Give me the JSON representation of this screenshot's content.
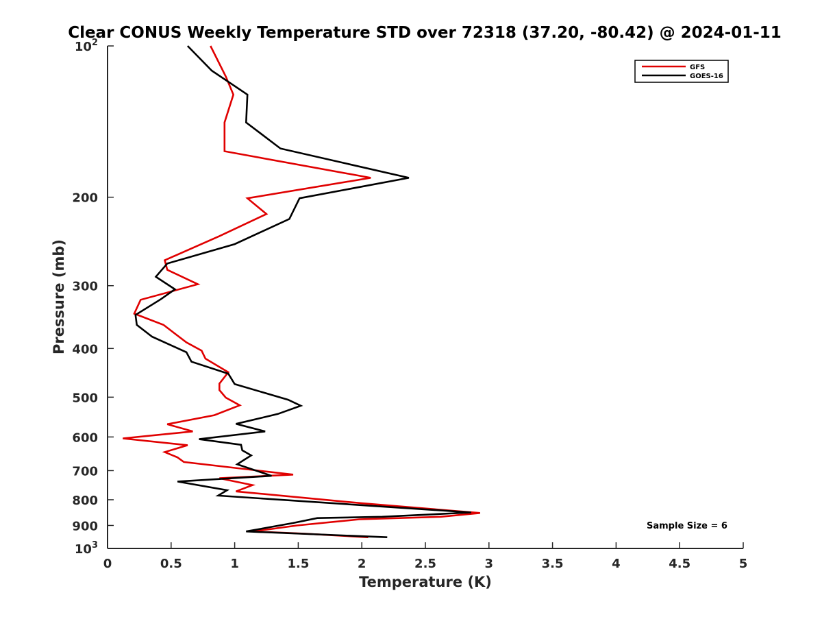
{
  "chart_data": {
    "type": "line",
    "title": "Clear CONUS Weekly Temperature STD over 72318 (37.20, -80.42) @ 2024-01-11",
    "xlabel": "Temperature (K)",
    "ylabel": "Pressure (mb)",
    "xlim": [
      0,
      5
    ],
    "ylim": [
      100,
      1000
    ],
    "y_scale": "log",
    "y_reversed": true,
    "x_ticks": [
      "0",
      "0.5",
      "1",
      "1.5",
      "2",
      "2.5",
      "3",
      "3.5",
      "4",
      "4.5",
      "5"
    ],
    "y_ticks": [
      {
        "value": 100,
        "base": "10",
        "exp": "2"
      },
      {
        "value": 200,
        "label": "200"
      },
      {
        "value": 300,
        "label": "300"
      },
      {
        "value": 400,
        "label": "400"
      },
      {
        "value": 500,
        "label": "500"
      },
      {
        "value": 600,
        "label": "600"
      },
      {
        "value": 700,
        "label": "700"
      },
      {
        "value": 800,
        "label": "800"
      },
      {
        "value": 900,
        "label": "900"
      },
      {
        "value": 1000,
        "base": "10",
        "exp": "3"
      }
    ],
    "grid": false,
    "legend_position": "top-right",
    "annotation": "Sample Size = 6",
    "series": [
      {
        "name": "GFS",
        "color": "#e00000",
        "points": [
          [
            0.81,
            100
          ],
          [
            0.93,
            115
          ],
          [
            0.99,
            125
          ],
          [
            0.92,
            142
          ],
          [
            0.92,
            162
          ],
          [
            2.07,
            183
          ],
          [
            1.1,
            201
          ],
          [
            1.25,
            216
          ],
          [
            0.88,
            239
          ],
          [
            0.45,
            267
          ],
          [
            0.47,
            279
          ],
          [
            0.71,
            298
          ],
          [
            0.26,
            320
          ],
          [
            0.21,
            341
          ],
          [
            0.44,
            359
          ],
          [
            0.62,
            389
          ],
          [
            0.74,
            404
          ],
          [
            0.77,
            419
          ],
          [
            0.95,
            446
          ],
          [
            0.88,
            470
          ],
          [
            0.88,
            484
          ],
          [
            0.93,
            501
          ],
          [
            1.04,
            519
          ],
          [
            0.84,
            543
          ],
          [
            0.47,
            566
          ],
          [
            0.67,
            585
          ],
          [
            0.12,
            604
          ],
          [
            0.63,
            623
          ],
          [
            0.45,
            643
          ],
          [
            0.55,
            659
          ],
          [
            0.6,
            673
          ],
          [
            1.46,
            713
          ],
          [
            0.88,
            725
          ],
          [
            1.14,
            748
          ],
          [
            1.01,
            770
          ],
          [
            2.0,
            813
          ],
          [
            2.93,
            850
          ],
          [
            2.62,
            865
          ],
          [
            1.98,
            875
          ],
          [
            1.49,
            900
          ],
          [
            1.15,
            925
          ],
          [
            1.56,
            935
          ],
          [
            2.05,
            950
          ]
        ]
      },
      {
        "name": "GOES-16",
        "color": "#000000",
        "points": [
          [
            0.63,
            100
          ],
          [
            0.82,
            112
          ],
          [
            1.1,
            125
          ],
          [
            1.09,
            142
          ],
          [
            1.36,
            160
          ],
          [
            2.37,
            183
          ],
          [
            1.51,
            201
          ],
          [
            1.43,
            221
          ],
          [
            1.0,
            248
          ],
          [
            0.47,
            271
          ],
          [
            0.38,
            288
          ],
          [
            0.53,
            305
          ],
          [
            0.42,
            319
          ],
          [
            0.22,
            343
          ],
          [
            0.23,
            359
          ],
          [
            0.35,
            379
          ],
          [
            0.62,
            407
          ],
          [
            0.66,
            425
          ],
          [
            0.95,
            449
          ],
          [
            1.0,
            471
          ],
          [
            1.42,
            506
          ],
          [
            1.52,
            520
          ],
          [
            1.34,
            540
          ],
          [
            1.01,
            565
          ],
          [
            1.24,
            585
          ],
          [
            0.72,
            606
          ],
          [
            1.05,
            622
          ],
          [
            1.06,
            638
          ],
          [
            1.13,
            653
          ],
          [
            1.08,
            665
          ],
          [
            1.02,
            680
          ],
          [
            1.29,
            717
          ],
          [
            0.55,
            736
          ],
          [
            0.94,
            766
          ],
          [
            0.87,
            785
          ],
          [
            2.86,
            848
          ],
          [
            2.16,
            865
          ],
          [
            1.65,
            870
          ],
          [
            1.46,
            890
          ],
          [
            1.09,
            925
          ],
          [
            2.2,
            950
          ]
        ]
      }
    ]
  }
}
